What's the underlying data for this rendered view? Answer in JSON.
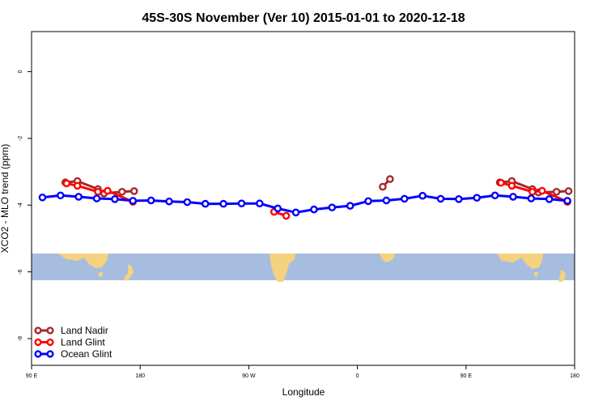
{
  "chart_data": {
    "type": "line",
    "title": "45S-30S November (Ver 10)   2015-01-01 to 2020-12-18",
    "xlabel": "Longitude",
    "ylabel": "XCO2 - MLO trend (ppm)",
    "xlim": [
      90,
      540
    ],
    "ylim": [
      -8.8,
      1.2
    ],
    "x_ticks": [
      {
        "value": 90,
        "label": "90 E"
      },
      {
        "value": 180,
        "label": "180"
      },
      {
        "value": 270,
        "label": "90 W"
      },
      {
        "value": 360,
        "label": "0"
      },
      {
        "value": 450,
        "label": "90 E"
      },
      {
        "value": 540,
        "label": "180"
      }
    ],
    "y_ticks": [
      {
        "value": 0,
        "label": "0"
      },
      {
        "value": -2,
        "label": "-2"
      },
      {
        "value": -4,
        "label": "-4"
      },
      {
        "value": -6,
        "label": "-6"
      },
      {
        "value": -8,
        "label": "-8"
      }
    ],
    "legend_position": "bottom-left",
    "map_strip": {
      "y_range": [
        -6.25,
        -5.45
      ],
      "ocean_color": "#a7bddf",
      "land_color": "#f5d27d"
    },
    "series": [
      {
        "name": "Land Nadir",
        "color": "#a52a2a",
        "segments": [
          [
            [
              118,
              -3.32
            ],
            [
              128,
              -3.28
            ],
            [
              145,
              -3.52
            ],
            [
              150,
              -3.65
            ],
            [
              165,
              -3.6
            ],
            [
              175,
              -3.58
            ]
          ],
          [
            [
              381,
              -3.45
            ],
            [
              387,
              -3.22
            ]
          ],
          [
            [
              478,
              -3.32
            ],
            [
              488,
              -3.28
            ],
            [
              505,
              -3.52
            ],
            [
              510,
              -3.62
            ],
            [
              525,
              -3.6
            ],
            [
              535,
              -3.58
            ]
          ]
        ]
      },
      {
        "name": "Land Glint",
        "color": "#ff0000",
        "segments": [
          [
            [
              119,
              -3.35
            ],
            [
              128,
              -3.42
            ],
            [
              145,
              -3.6
            ],
            [
              153,
              -3.57
            ],
            [
              174,
              -3.9
            ]
          ],
          [
            [
              291,
              -4.2
            ],
            [
              301,
              -4.32
            ]
          ],
          [
            [
              479,
              -3.33
            ],
            [
              488,
              -3.42
            ],
            [
              505,
              -3.6
            ],
            [
              513,
              -3.57
            ],
            [
              534,
              -3.9
            ]
          ]
        ]
      },
      {
        "name": "Ocean Glint",
        "color": "#0000ff",
        "segments": [
          [
            [
              99,
              -3.77
            ],
            [
              114,
              -3.71
            ],
            [
              129,
              -3.75
            ],
            [
              144,
              -3.8
            ],
            [
              159,
              -3.82
            ],
            [
              174,
              -3.87
            ],
            [
              189,
              -3.86
            ],
            [
              204,
              -3.89
            ],
            [
              219,
              -3.91
            ],
            [
              234,
              -3.96
            ],
            [
              249,
              -3.96
            ],
            [
              264,
              -3.95
            ],
            [
              279,
              -3.95
            ],
            [
              294,
              -4.1
            ],
            [
              309,
              -4.22
            ],
            [
              324,
              -4.13
            ],
            [
              339,
              -4.07
            ],
            [
              354,
              -4.02
            ],
            [
              369,
              -3.88
            ],
            [
              384,
              -3.86
            ],
            [
              399,
              -3.81
            ],
            [
              414,
              -3.72
            ],
            [
              429,
              -3.81
            ],
            [
              444,
              -3.82
            ],
            [
              459,
              -3.78
            ],
            [
              474,
              -3.71
            ],
            [
              489,
              -3.75
            ],
            [
              504,
              -3.8
            ],
            [
              519,
              -3.82
            ],
            [
              534,
              -3.87
            ]
          ]
        ]
      }
    ]
  }
}
